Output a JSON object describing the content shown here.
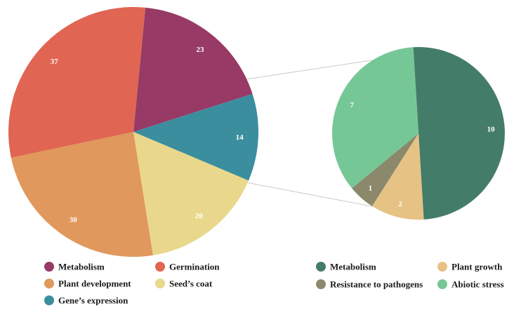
{
  "chart_data": [
    {
      "type": "pie",
      "title": "",
      "slices": [
        {
          "label": "Metabolism",
          "value": 23,
          "color": "#973a66"
        },
        {
          "label": "Gene’s expression",
          "value": 14,
          "color": "#3b8e9e"
        },
        {
          "label": "Seed’s coat",
          "value": 20,
          "color": "#e9d88c"
        },
        {
          "label": "Plant development",
          "value": 30,
          "color": "#e0985c"
        },
        {
          "label": "Germination",
          "value": 37,
          "color": "#e06552"
        }
      ],
      "legend": [
        {
          "label": "Metabolism",
          "color": "#973a66"
        },
        {
          "label": "Germination",
          "color": "#e06552"
        },
        {
          "label": "Plant development",
          "color": "#e0985c"
        },
        {
          "label": "Seed’s coat",
          "color": "#e9d88c"
        },
        {
          "label": "Gene’s expression",
          "color": "#3b8e9e"
        }
      ],
      "legend_position": "bottom-left"
    },
    {
      "type": "pie",
      "title": "",
      "breakout_of": "Metabolism",
      "slices": [
        {
          "label": "Metabolism",
          "value": 10,
          "color": "#447c6a"
        },
        {
          "label": "Plant growth",
          "value": 2,
          "color": "#e6c285"
        },
        {
          "label": "Resistance to pathogens",
          "value": 1,
          "color": "#8b886c"
        },
        {
          "label": "Abiotic stress",
          "value": 7,
          "color": "#76c796"
        }
      ],
      "legend": [
        {
          "label": "Metabolism",
          "color": "#447c6a"
        },
        {
          "label": "Plant growth",
          "color": "#e6c285"
        },
        {
          "label": "Resistance to pathogens",
          "color": "#8b886c"
        },
        {
          "label": "Abiotic stress",
          "color": "#76c796"
        }
      ],
      "legend_position": "bottom-right"
    }
  ]
}
